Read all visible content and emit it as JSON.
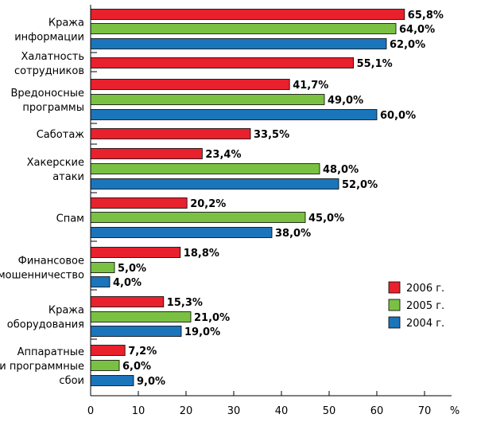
{
  "chart_data": {
    "type": "bar",
    "orientation": "horizontal",
    "xlabel": "%",
    "xlim": [
      0,
      75
    ],
    "xticks": [
      0,
      10,
      20,
      30,
      40,
      50,
      60,
      70
    ],
    "grid": false,
    "legend_position": "bottom-right",
    "series": [
      {
        "name": "2006 г.",
        "color": "#e8212d"
      },
      {
        "name": "2005 г.",
        "color": "#7ac143"
      },
      {
        "name": "2004 г.",
        "color": "#1b75bb"
      }
    ],
    "categories": [
      {
        "label": [
          "Кража",
          "информации"
        ],
        "values": [
          65.8,
          64.0,
          62.0
        ],
        "value_labels": [
          "65,8%",
          "64,0%",
          "62,0%"
        ]
      },
      {
        "label": [
          "Халатность",
          "сотрудников"
        ],
        "values": [
          55.1,
          null,
          null
        ],
        "value_labels": [
          "55,1%",
          null,
          null
        ]
      },
      {
        "label": [
          "Вредоносные",
          "программы"
        ],
        "values": [
          41.7,
          49.0,
          60.0
        ],
        "value_labels": [
          "41,7%",
          "49,0%",
          "60,0%"
        ]
      },
      {
        "label": [
          "Саботаж"
        ],
        "values": [
          33.5,
          null,
          null
        ],
        "value_labels": [
          "33,5%",
          null,
          null
        ]
      },
      {
        "label": [
          "Хакерские",
          "атаки"
        ],
        "values": [
          23.4,
          48.0,
          52.0
        ],
        "value_labels": [
          "23,4%",
          "48,0%",
          "52,0%"
        ]
      },
      {
        "label": [
          "Спам"
        ],
        "values": [
          20.2,
          45.0,
          38.0
        ],
        "value_labels": [
          "20,2%",
          "45,0%",
          "38,0%"
        ]
      },
      {
        "label": [
          "Финансовое",
          "мошенничество"
        ],
        "values": [
          18.8,
          5.0,
          4.0
        ],
        "value_labels": [
          "18,8%",
          "5,0%",
          "4,0%"
        ]
      },
      {
        "label": [
          "Кража",
          "оборудования"
        ],
        "values": [
          15.3,
          21.0,
          19.0
        ],
        "value_labels": [
          "15,3%",
          "21,0%",
          "19,0%"
        ]
      },
      {
        "label": [
          "Аппаратные",
          "и программные",
          "сбои"
        ],
        "values": [
          7.2,
          6.0,
          9.0
        ],
        "value_labels": [
          "7,2%",
          "6,0%",
          "9,0%"
        ]
      }
    ]
  }
}
